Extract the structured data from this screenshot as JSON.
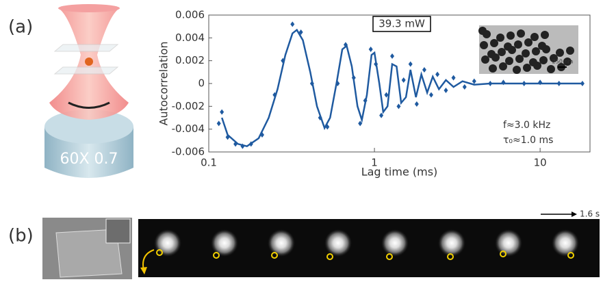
{
  "panel_labels": [
    "(a)",
    "(b)"
  ],
  "objective_label": "60X 0.7",
  "time_scale": "1.6 s",
  "inset_scale": "250 nm",
  "chart_data": {
    "type": "scatter",
    "xlabel": "Lag time (ms)",
    "ylabel": "Autocorrelation",
    "xscale": "log",
    "xlim": [
      0.1,
      20
    ],
    "ylim": [
      -0.006,
      0.006
    ],
    "xticks": [
      0.1,
      1,
      10
    ],
    "yticks": [
      0.006,
      0.004,
      0.002,
      0,
      -0.002,
      -0.004,
      -0.006
    ],
    "grid": false,
    "annotations": [
      "39.3 mW",
      "f≈3.0 kHz",
      "τ₀≈1.0 ms"
    ],
    "series": [
      {
        "type": "line",
        "color": "#1f5aa0",
        "x": [
          0.12,
          0.13,
          0.15,
          0.17,
          0.2,
          0.23,
          0.26,
          0.29,
          0.32,
          0.34,
          0.37,
          0.41,
          0.45,
          0.5,
          0.54,
          0.59,
          0.64,
          0.68,
          0.73,
          0.79,
          0.84,
          0.9,
          0.96,
          1.0,
          1.07,
          1.13,
          1.2,
          1.28,
          1.36,
          1.45,
          1.55,
          1.65,
          1.78,
          1.92,
          2.08,
          2.25,
          2.45,
          2.7,
          3.0,
          3.4,
          4,
          5,
          8,
          18
        ],
        "values": [
          -0.003,
          -0.0045,
          -0.0053,
          -0.0055,
          -0.0048,
          -0.003,
          -0.0005,
          0.0025,
          0.0044,
          0.0047,
          0.0038,
          0.001,
          -0.002,
          -0.0039,
          -0.003,
          0.0,
          0.003,
          0.0033,
          0.0015,
          -0.002,
          -0.0032,
          -0.001,
          0.0025,
          0.0027,
          0.0,
          -0.0025,
          -0.002,
          0.0017,
          0.0015,
          -0.0017,
          -0.0012,
          0.0012,
          -0.0012,
          0.0008,
          -0.0008,
          0.0006,
          -0.0005,
          0.0003,
          -0.0003,
          0.0002,
          -0.0001,
          0.0,
          0.0,
          0.0
        ]
      },
      {
        "type": "scatter",
        "color": "#1f5aa0",
        "x": [
          0.115,
          0.12,
          0.13,
          0.145,
          0.16,
          0.18,
          0.21,
          0.25,
          0.28,
          0.32,
          0.36,
          0.42,
          0.47,
          0.52,
          0.6,
          0.67,
          0.75,
          0.82,
          0.88,
          0.95,
          1.02,
          1.1,
          1.18,
          1.28,
          1.4,
          1.5,
          1.65,
          1.8,
          2.0,
          2.2,
          2.4,
          2.7,
          3.0,
          3.5,
          4,
          5,
          6,
          8,
          10,
          13,
          18
        ],
        "values": [
          -0.0035,
          -0.0025,
          -0.0047,
          -0.0053,
          -0.0055,
          -0.0053,
          -0.0045,
          -0.001,
          0.002,
          0.0052,
          0.0045,
          0.0,
          -0.003,
          -0.0038,
          0.0,
          0.0034,
          0.0005,
          -0.0035,
          -0.0015,
          0.003,
          0.0017,
          -0.0028,
          -0.001,
          0.0024,
          -0.002,
          0.0003,
          0.0017,
          -0.0018,
          0.0012,
          -0.001,
          0.0008,
          -0.0006,
          0.0005,
          -0.0003,
          0.0002,
          0.0,
          0.0001,
          0.0,
          0.0001,
          0.0,
          0.0
        ]
      }
    ]
  }
}
